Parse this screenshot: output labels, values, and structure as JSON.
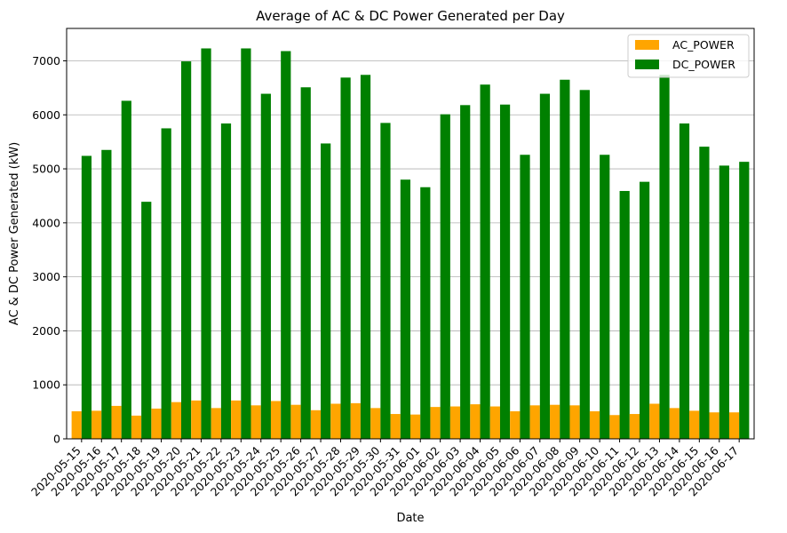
{
  "chart_data": {
    "type": "bar",
    "title": "Average of AC & DC Power Generated per Day",
    "xlabel": "Date",
    "ylabel": "AC & DC Power Generated (kW)",
    "ylim": [
      0,
      7600
    ],
    "yticks": [
      0,
      1000,
      2000,
      3000,
      4000,
      5000,
      6000,
      7000
    ],
    "grid": "y",
    "legend_position": "top-right",
    "categories": [
      "2020-05-15",
      "2020-05-16",
      "2020-05-17",
      "2020-05-18",
      "2020-05-19",
      "2020-05-20",
      "2020-05-21",
      "2020-05-22",
      "2020-05-23",
      "2020-05-24",
      "2020-05-25",
      "2020-05-26",
      "2020-05-27",
      "2020-05-28",
      "2020-05-29",
      "2020-05-30",
      "2020-05-31",
      "2020-06-01",
      "2020-06-02",
      "2020-06-03",
      "2020-06-04",
      "2020-06-05",
      "2020-06-06",
      "2020-06-07",
      "2020-06-08",
      "2020-06-09",
      "2020-06-10",
      "2020-06-11",
      "2020-06-12",
      "2020-06-13",
      "2020-06-14",
      "2020-06-15",
      "2020-06-16",
      "2020-06-17"
    ],
    "series": [
      {
        "name": "AC_POWER",
        "color": "#ffa500",
        "values": [
          510,
          520,
          610,
          430,
          560,
          680,
          710,
          570,
          710,
          620,
          700,
          630,
          530,
          650,
          660,
          570,
          460,
          450,
          590,
          600,
          640,
          600,
          510,
          620,
          630,
          620,
          510,
          440,
          460,
          650,
          570,
          520,
          490,
          490
        ]
      },
      {
        "name": "DC_POWER",
        "color": "#008000",
        "values": [
          5240,
          5350,
          6260,
          4390,
          5750,
          6990,
          7230,
          5840,
          7230,
          6390,
          7180,
          6510,
          5470,
          6690,
          6740,
          5850,
          4800,
          4660,
          6010,
          6180,
          6560,
          6190,
          5260,
          6390,
          6650,
          6460,
          5260,
          4590,
          4760,
          6740,
          5840,
          5410,
          5060,
          5130
        ]
      }
    ]
  }
}
